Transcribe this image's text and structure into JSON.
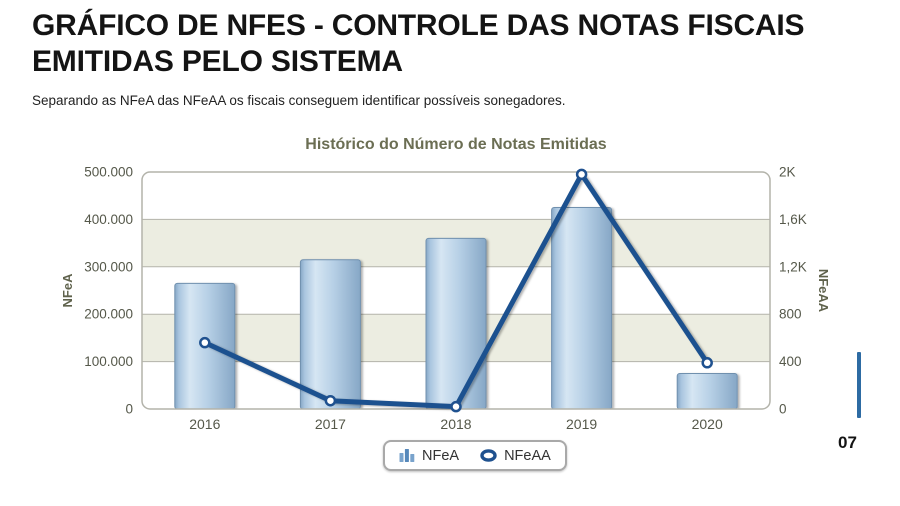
{
  "page": {
    "title": "GRÁFICO DE NFES - CONTROLE DAS NOTAS FISCAIS EMITIDAS PELO SISTEMA",
    "subtitle": "Separando as NFeA das NFeAA os fiscais conseguem identificar possíveis sonegadores.",
    "page_number": "07"
  },
  "legend": {
    "items": [
      {
        "label": "NFeA",
        "icon": "bar-chart-icon"
      },
      {
        "label": "NFeAA",
        "icon": "ellipse-marker-icon"
      }
    ]
  },
  "colors": {
    "line": "#1f518f",
    "bar_border": "#7090ae",
    "bar_edge": "#86a7c6",
    "bar_highlight": "#d6e6f3",
    "bar_mid": "#b7d0e6",
    "band": "#ecede1",
    "grid": "#b3b3aa",
    "axis_text": "#55584a",
    "axis_title": "#5f624c",
    "chart_title": "#6b6e53",
    "accent": "#2d6ba3",
    "legend_icon_bar_light": "#79a3cc",
    "legend_icon_bar_dark": "#5688ba"
  },
  "chart_data": {
    "type": "combo",
    "title": "Histórico do Número de Notas Emitidas",
    "categories": [
      "2016",
      "2017",
      "2018",
      "2019",
      "2020"
    ],
    "series": [
      {
        "name": "NFeA",
        "type": "bar",
        "axis": "left",
        "values": [
          265000,
          315000,
          360000,
          425000,
          75000
        ]
      },
      {
        "name": "NFeAA",
        "type": "line",
        "axis": "right",
        "values": [
          560,
          70,
          20,
          1980,
          390
        ]
      }
    ],
    "left_axis": {
      "label": "NFeA",
      "max": 500000,
      "min": 0,
      "ticks": [
        "500.000",
        "400.000",
        "300.000",
        "200.000",
        "100.000",
        "0"
      ]
    },
    "right_axis": {
      "label": "NFeAA",
      "max": 2000,
      "min": 0,
      "ticks": [
        "2K",
        "1,6K",
        "1,2K",
        "800",
        "400",
        "0"
      ]
    },
    "grid": "horizontal-bands",
    "legend_position": "bottom"
  }
}
